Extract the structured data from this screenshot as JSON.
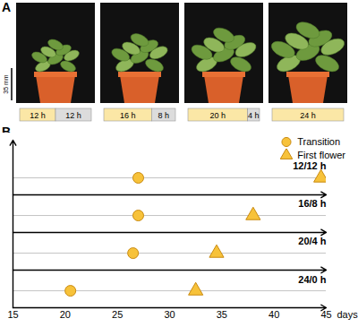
{
  "panel_a": {
    "label": "A",
    "scale_bar": "35 mm",
    "photoperiods": [
      {
        "light": 12,
        "dark": 12,
        "light_label": "12 h",
        "dark_label": "12 h"
      },
      {
        "light": 16,
        "dark": 8,
        "light_label": "16 h",
        "dark_label": "8 h"
      },
      {
        "light": 20,
        "dark": 4,
        "light_label": "20 h",
        "dark_label": "4 h"
      },
      {
        "light": 24,
        "dark": 0,
        "light_label": "24 h"
      }
    ]
  },
  "chart_data": {
    "type": "scatter",
    "panel_label": "B",
    "categories": [
      "12/12 h",
      "16/8 h",
      "20/4 h",
      "24/0 h"
    ],
    "series": [
      {
        "name": "Transition",
        "color": "#f7c23a",
        "marker": "circle",
        "values": [
          27,
          27,
          26.5,
          20.5
        ]
      },
      {
        "name": "First flower",
        "color": "#f7c23a",
        "marker": "triangle",
        "values": [
          44.5,
          38,
          34.5,
          32.5
        ]
      }
    ],
    "x_label": "days",
    "xlim": [
      15,
      45
    ],
    "xticks": [
      15,
      20,
      25,
      30,
      35,
      40,
      45
    ],
    "legend": "top-right",
    "tick_labels": "x"
  }
}
